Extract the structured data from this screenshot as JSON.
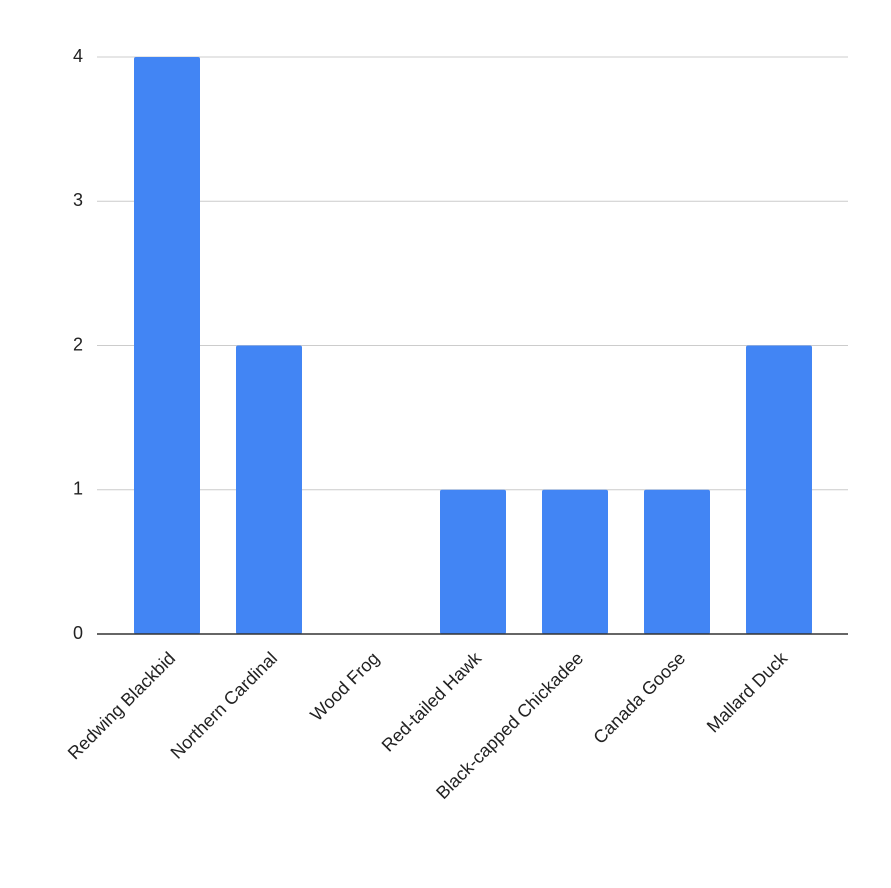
{
  "chart_data": {
    "type": "bar",
    "categories": [
      "Redwing Blackbid",
      "Northern Cardinal",
      "Wood Frog",
      "Red-tailed Hawk",
      "Black-capped Chickadee",
      "Canada Goose",
      "Mallard Duck"
    ],
    "values": [
      4,
      2,
      0,
      1,
      1,
      1,
      2
    ],
    "color": "#4285f4",
    "ylim": [
      0,
      4
    ],
    "yticks": [
      0,
      1,
      2,
      3,
      4
    ],
    "grid": true
  }
}
